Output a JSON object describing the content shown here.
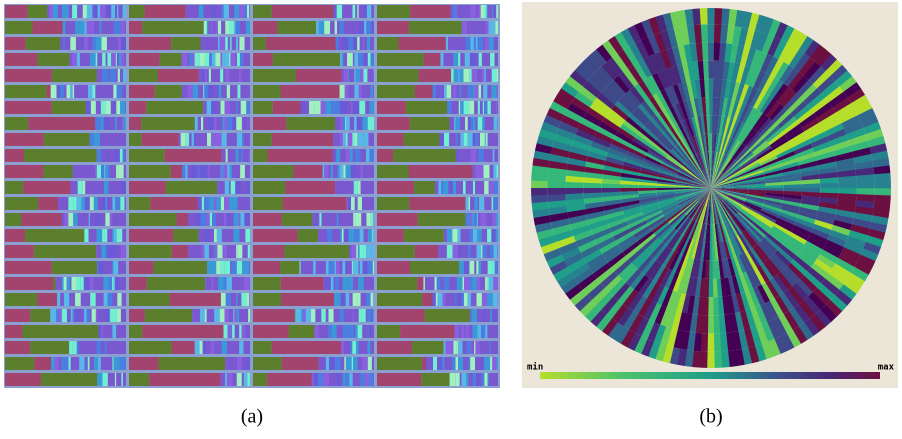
{
  "panels": [
    {
      "caption": "(a)"
    },
    {
      "caption": "(b)",
      "colorbar": {
        "min_label": "min",
        "max_label": "max"
      }
    }
  ]
}
